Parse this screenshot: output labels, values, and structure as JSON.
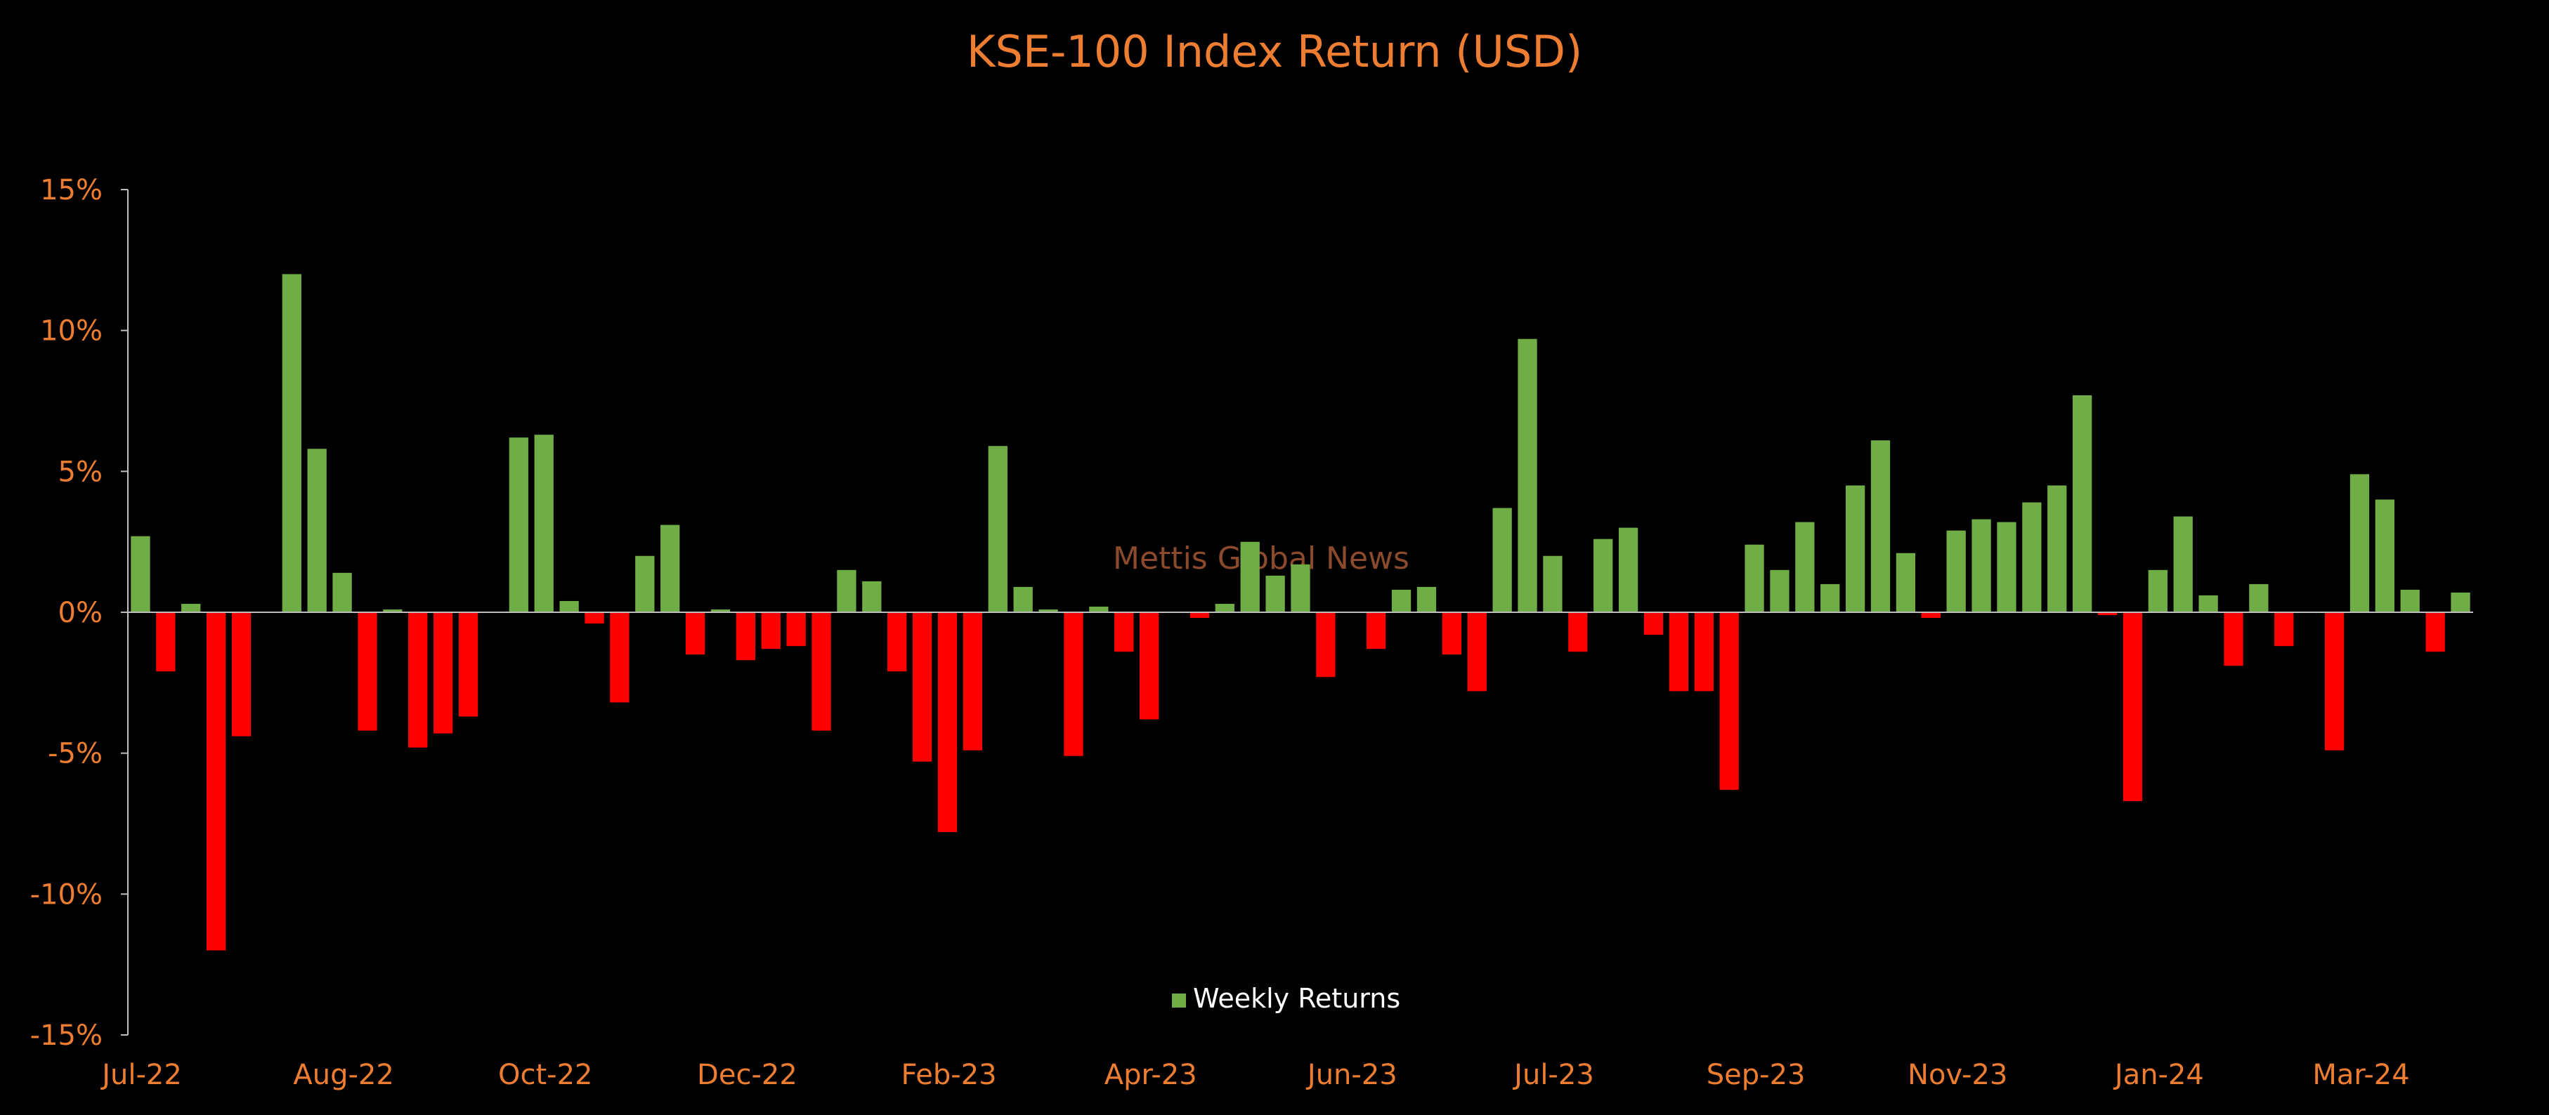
{
  "chart_data": {
    "type": "bar",
    "title": "KSE-100 Index Return (USD)",
    "watermark": "Mettis Global News",
    "xlabel": "",
    "ylabel": "",
    "ylim": [
      -15,
      15
    ],
    "yticks": [
      15,
      10,
      5,
      0,
      -5,
      -10,
      -15
    ],
    "ytick_labels": [
      "15%",
      "10%",
      "5%",
      "0%",
      "-5%",
      "-10%",
      "-15%"
    ],
    "xtick_labels": [
      "Jul-22",
      "Aug-22",
      "Oct-22",
      "Dec-22",
      "Feb-23",
      "Apr-23",
      "Jun-23",
      "Jul-23",
      "Sep-23",
      "Nov-23",
      "Jan-24",
      "Mar-24"
    ],
    "xtick_positions": [
      0,
      8,
      16,
      24,
      32,
      40,
      48,
      56,
      64,
      72,
      80,
      88
    ],
    "legend": {
      "position": "bottom-center",
      "entries": [
        "Weekly Returns"
      ]
    },
    "colors": {
      "positive": "#70AD47",
      "negative": "#FF0000",
      "text": "#ED7D31",
      "axis": "#BFBFBF",
      "watermark": "#8B4A2B",
      "legend_text": "#FFFFFF"
    },
    "series": [
      {
        "name": "Weekly Returns",
        "values": [
          2.7,
          -2.1,
          0.3,
          -12.0,
          -4.4,
          0.0,
          12.0,
          5.8,
          1.4,
          -4.2,
          0.1,
          -4.8,
          -4.3,
          -3.7,
          0.0,
          6.2,
          6.3,
          0.4,
          -0.4,
          -3.2,
          2.0,
          3.1,
          -1.5,
          0.1,
          -1.7,
          -1.3,
          -1.2,
          -4.2,
          1.5,
          1.1,
          -2.1,
          -5.3,
          -7.8,
          -4.9,
          5.9,
          0.9,
          0.1,
          -5.1,
          0.2,
          -1.4,
          -3.8,
          0.0,
          -0.2,
          0.3,
          2.5,
          1.3,
          1.7,
          -2.3,
          0.0,
          -1.3,
          0.8,
          0.9,
          -1.5,
          -2.8,
          3.7,
          9.7,
          2.0,
          -1.4,
          2.6,
          3.0,
          -0.8,
          -2.8,
          -2.8,
          -6.3,
          2.4,
          1.5,
          3.2,
          1.0,
          4.5,
          6.1,
          2.1,
          -0.2,
          2.9,
          3.3,
          3.2,
          3.9,
          4.5,
          7.7,
          -0.1,
          -6.7,
          1.5,
          3.4,
          0.6,
          -1.9,
          1.0,
          -1.2,
          0.0,
          -4.9,
          4.9,
          4.0,
          0.8,
          -1.4,
          0.7
        ]
      }
    ]
  }
}
